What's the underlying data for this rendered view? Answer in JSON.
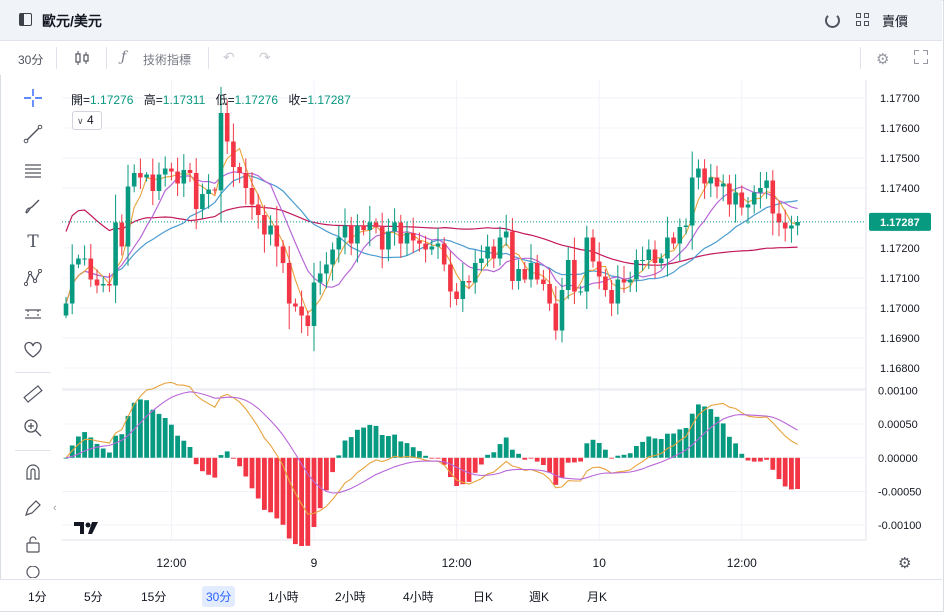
{
  "title": "歐元/美元",
  "mode": "賣價",
  "toolbar": {
    "interval": "30分",
    "indicators_label": "技術指標"
  },
  "ohlc": {
    "open_label": "開=",
    "open": "1.17276",
    "high_label": "高=",
    "high": "1.17311",
    "low_label": "低=",
    "low": "1.17276",
    "close_label": "收=",
    "close": "1.17287"
  },
  "collapse_count": "4",
  "timeframes": [
    "1分",
    "5分",
    "15分",
    "30分",
    "1小時",
    "2小時",
    "4小時",
    "日K",
    "週K",
    "月K"
  ],
  "active_timeframe": "30分",
  "colors": {
    "up": "#089981",
    "down": "#f23645",
    "ma_fast": "#e8a33d",
    "ma_mid": "#b967d8",
    "ma_slow": "#4a9bd1",
    "ma_long": "#c2185b"
  },
  "chart_data": {
    "type": "candlestick",
    "price_axis": {
      "ticks": [
        1.177,
        1.176,
        1.175,
        1.174,
        1.172,
        1.171,
        1.17,
        1.169,
        1.168
      ],
      "tick_labels": [
        "1.17700",
        "1.17600",
        "1.17500",
        "1.17400",
        "1.17200",
        "1.17100",
        "1.17000",
        "1.16900",
        "1.16800"
      ],
      "ylim": [
        1.1673,
        1.1776
      ],
      "last_price": 1.17287,
      "last_price_label": "1.17287"
    },
    "macd_axis": {
      "ticks": [
        0.001,
        0.0005,
        0,
        -0.0005,
        -0.001
      ],
      "tick_labels": [
        "0.00100",
        "0.00050",
        "0.00000",
        "-0.00050",
        "-0.00100"
      ],
      "ylim": [
        -0.00122,
        0.00102
      ]
    },
    "time_axis": {
      "labels": [
        "12:00",
        "9",
        "12:00",
        "10",
        "12:00"
      ],
      "label_bar_index": [
        17,
        40,
        63,
        86,
        109
      ]
    },
    "close": [
      1.17015,
      1.17145,
      1.17165,
      1.17165,
      1.17095,
      1.17075,
      1.1708,
      1.17075,
      1.17285,
      1.17205,
      1.17405,
      1.1745,
      1.17435,
      1.17445,
      1.1739,
      1.17445,
      1.17465,
      1.17455,
      1.17415,
      1.1746,
      1.1745,
      1.1733,
      1.1738,
      1.17395,
      1.17392,
      1.1765,
      1.17555,
      1.1747,
      1.1745,
      1.174,
      1.17345,
      1.1731,
      1.17245,
      1.17275,
      1.17205,
      1.1715,
      1.17015,
      1.17005,
      1.16975,
      1.1694,
      1.17085,
      1.17115,
      1.17145,
      1.17195,
      1.17235,
      1.17275,
      1.17215,
      1.17275,
      1.1726,
      1.17285,
      1.1727,
      1.17195,
      1.17255,
      1.17285,
      1.17215,
      1.1725,
      1.17225,
      1.17215,
      1.17195,
      1.17205,
      1.17215,
      1.17145,
      1.17055,
      1.1703,
      1.1709,
      1.17085,
      1.1715,
      1.17165,
      1.17205,
      1.17165,
      1.17235,
      1.17255,
      1.1709,
      1.1713,
      1.17095,
      1.1715,
      1.17095,
      1.1708,
      1.17015,
      1.16925,
      1.1706,
      1.1716,
      1.17055,
      1.17055,
      1.17235,
      1.17155,
      1.17105,
      1.1706,
      1.17015,
      1.17095,
      1.17085,
      1.17095,
      1.1716,
      1.1716,
      1.17195,
      1.1715,
      1.17165,
      1.17235,
      1.17215,
      1.1727,
      1.17275,
      1.17435,
      1.17465,
      1.17415,
      1.17435,
      1.17405,
      1.17415,
      1.17345,
      1.17385,
      1.17335,
      1.17345,
      1.17385,
      1.174,
      1.17425,
      1.17315,
      1.17285,
      1.17265,
      1.17275,
      1.17287
    ]
  }
}
